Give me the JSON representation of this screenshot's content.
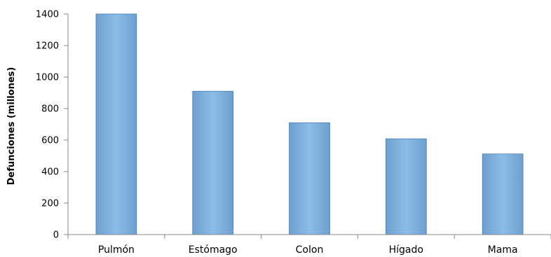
{
  "chart_data": {
    "type": "bar",
    "categories": [
      "Pulmón",
      "Estómago",
      "Colon",
      "Hígado",
      "Mama"
    ],
    "values": [
      1400,
      910,
      710,
      608,
      512
    ],
    "title": "",
    "xlabel": "",
    "ylabel": "Defunciones (millones)",
    "ylim": [
      0,
      1400
    ],
    "yticks": [
      0,
      200,
      400,
      600,
      800,
      1000,
      1200,
      1400
    ],
    "grid": false,
    "legend": "none",
    "bar_color": "#6f9fcf",
    "bar_highlight": "#8cbde6",
    "bar_edge": "#4a7db0",
    "axis_color": "#888888"
  }
}
